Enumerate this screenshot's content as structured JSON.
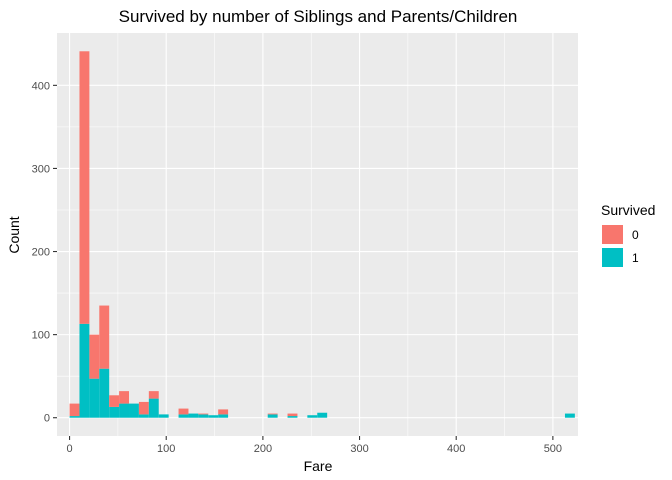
{
  "chart_data": {
    "type": "bar",
    "stacked": true,
    "title": "Survived by number of Siblings and Parents/Children",
    "xlabel": "Fare",
    "ylabel": "Count",
    "xlim": [
      -13,
      526
    ],
    "ylim": [
      -22,
      463
    ],
    "xticks": [
      0,
      100,
      200,
      300,
      400,
      500
    ],
    "yticks": [
      0,
      100,
      200,
      300,
      400
    ],
    "bin_width": 10.25,
    "grid": true,
    "legend": {
      "title": "Survived",
      "placement": "right"
    },
    "colors": {
      "0": "#F8766D",
      "1": "#00BFC4",
      "panel": "#EBEBEB",
      "grid": "#FFFFFF"
    },
    "bins": [
      0,
      10.25,
      20.5,
      30.75,
      41,
      51.25,
      61.5,
      71.75,
      82,
      92.25,
      112.75,
      123,
      133.25,
      143.5,
      153.75,
      205,
      225.5,
      246,
      256.25,
      512.5
    ],
    "series": [
      {
        "name": "1",
        "values": [
          2,
          113,
          47,
          59,
          13,
          17,
          17,
          4,
          23,
          4,
          4,
          5,
          4,
          3,
          4,
          4,
          2,
          3,
          6,
          5
        ]
      },
      {
        "name": "0",
        "values": [
          15,
          328,
          53,
          76,
          14,
          15,
          0,
          15,
          9,
          0,
          7,
          0,
          1,
          0,
          6,
          1,
          3,
          0,
          0,
          0
        ]
      }
    ]
  }
}
